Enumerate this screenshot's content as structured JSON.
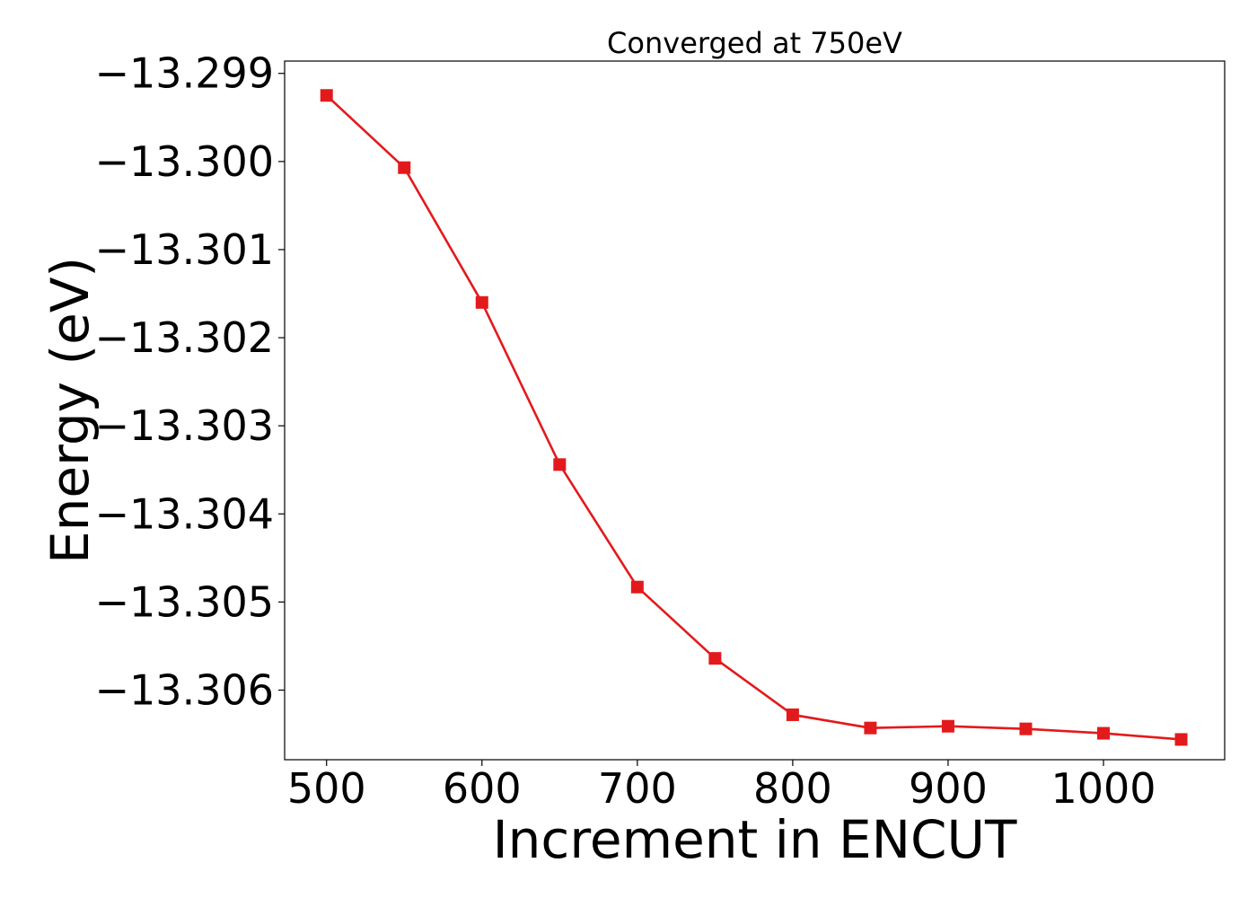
{
  "chart_data": {
    "type": "line",
    "title": "Converged at 750eV",
    "xlabel": "Increment in ENCUT",
    "ylabel": "Energy (eV)",
    "x": [
      500,
      550,
      600,
      650,
      700,
      750,
      800,
      850,
      900,
      950,
      1000,
      1050
    ],
    "series": [
      {
        "values": [
          -13.29925,
          -13.30007,
          -13.3016,
          -13.30344,
          -13.30483,
          -13.30564,
          -13.30628,
          -13.30643,
          -13.30641,
          -13.30644,
          -13.30649,
          -13.30656
        ],
        "color": "#e31a1c",
        "marker": "square"
      }
    ],
    "xlim": [
      473,
      1078
    ],
    "ylim": [
      -13.30679,
      -13.29886
    ],
    "xticks": [
      500,
      600,
      700,
      800,
      900,
      1000
    ],
    "xtick_labels": [
      "500",
      "600",
      "700",
      "800",
      "900",
      "1000"
    ],
    "yticks": [
      -13.299,
      -13.3,
      -13.301,
      -13.302,
      -13.303,
      -13.304,
      -13.305,
      -13.306
    ],
    "ytick_labels": [
      "−13.299",
      "−13.300",
      "−13.301",
      "−13.302",
      "−13.303",
      "−13.304",
      "−13.305",
      "−13.306"
    ],
    "grid": false,
    "legend": "none"
  }
}
